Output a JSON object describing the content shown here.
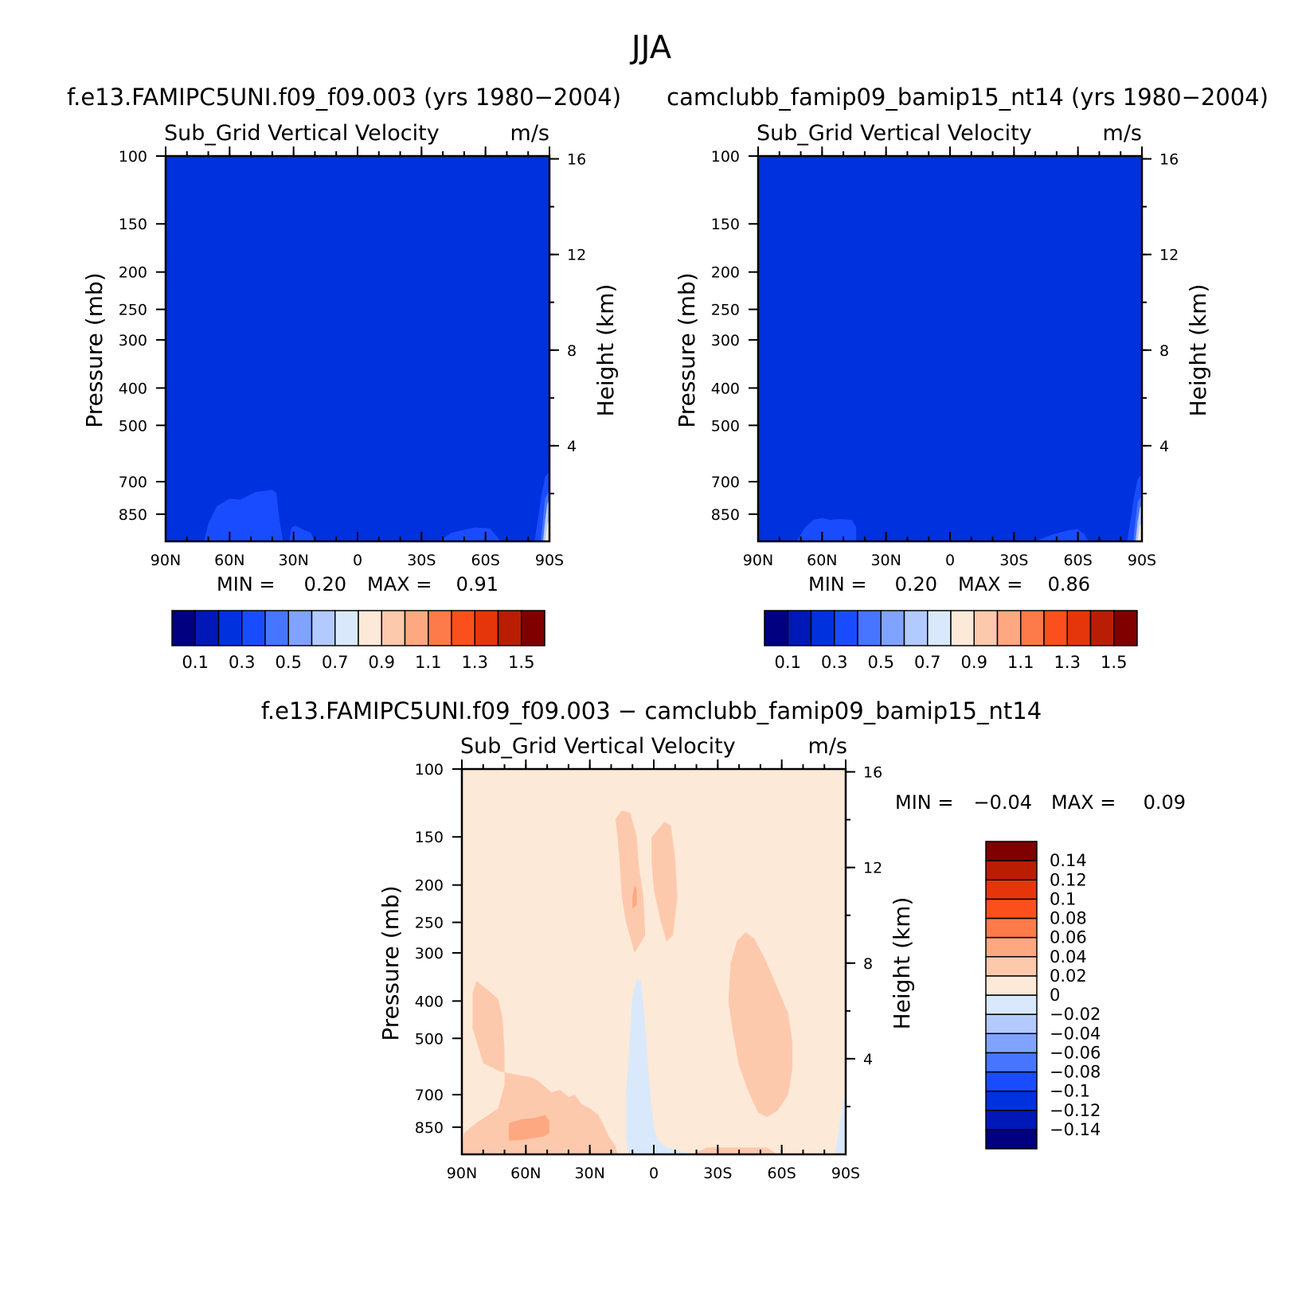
{
  "figure": {
    "title": "JJA"
  },
  "palettes": {
    "abs": [
      "#000080",
      "#0018b8",
      "#0031de",
      "#1a4cff",
      "#4775ff",
      "#80a3ff",
      "#b3caff",
      "#d9e9fb",
      "#fde9d8",
      "#fdc9ad",
      "#fda880",
      "#fd7a4a",
      "#fb501d",
      "#e4360a",
      "#b91e05",
      "#800000"
    ],
    "diff": [
      "#000080",
      "#0018b8",
      "#0031de",
      "#1a4cff",
      "#4775ff",
      "#80a3ff",
      "#b3caff",
      "#d9e9fb",
      "#fde9d8",
      "#fdc9ad",
      "#fda880",
      "#fd7a4a",
      "#fb501d",
      "#e4360a",
      "#b91e05",
      "#800000"
    ]
  },
  "chart_data": [
    {
      "type": "heatmap",
      "case_title": "f.e13.FAMIPC5UNI.f09_f09.003 (yrs 1980-2004)",
      "var_title": "Sub_Grid Vertical Velocity",
      "units": "m/s",
      "ylabel": "Pressure (mb)",
      "ylabel_right": "Height (km)",
      "x_ticks": [
        "90N",
        "60N",
        "30N",
        "0",
        "30S",
        "60S",
        "90S"
      ],
      "y_ticks": [
        "100",
        "150",
        "200",
        "250",
        "300",
        "400",
        "500",
        "700",
        "850"
      ],
      "y_ticks_right": [
        "16",
        "12",
        "8",
        "4"
      ],
      "xlim": [
        90,
        -90
      ],
      "ylim": [
        1000,
        100
      ],
      "y_scale": "log",
      "min_label": "MIN =",
      "min_value": "0.20",
      "max_label": "MAX =",
      "max_value": "0.91",
      "background_value": 0.25,
      "colorbar_labels": [
        "0.1",
        "0.3",
        "0.5",
        "0.7",
        "0.9",
        "1.1",
        "1.3",
        "1.5"
      ],
      "levels": [
        0.1,
        0.2,
        0.3,
        0.4,
        0.5,
        0.6,
        0.7,
        0.8,
        0.9,
        1.0,
        1.1,
        1.2,
        1.3,
        1.4,
        1.5
      ],
      "regions": [
        {
          "value": 0.35,
          "points": [
            [
              72,
              1000
            ],
            [
              70,
              900
            ],
            [
              66,
              810
            ],
            [
              60,
              775
            ],
            [
              55,
              780
            ],
            [
              48,
              745
            ],
            [
              40,
              735
            ],
            [
              38,
              750
            ],
            [
              37,
              850
            ],
            [
              35,
              1000
            ]
          ]
        },
        {
          "value": 0.35,
          "points": [
            [
              32,
              1000
            ],
            [
              31,
              920
            ],
            [
              29,
              910
            ],
            [
              26,
              930
            ],
            [
              22,
              950
            ],
            [
              20,
              1000
            ]
          ]
        },
        {
          "value": 0.35,
          "points": [
            [
              -38,
              1000
            ],
            [
              -44,
              950
            ],
            [
              -55,
              920
            ],
            [
              -62,
              925
            ],
            [
              -66,
              980
            ],
            [
              -67,
              1000
            ]
          ]
        },
        {
          "value": 0.35,
          "points": [
            [
              -83,
              1000
            ],
            [
              -85,
              850
            ],
            [
              -86,
              770
            ],
            [
              -88,
              680
            ],
            [
              -90,
              660
            ],
            [
              -90,
              1000
            ]
          ]
        },
        {
          "value": 0.45,
          "points": [
            [
              -86,
              1000
            ],
            [
              -87,
              870
            ],
            [
              -88,
              770
            ],
            [
              -90,
              740
            ],
            [
              -90,
              1000
            ]
          ]
        },
        {
          "value": 0.6,
          "points": [
            [
              -87,
              1000
            ],
            [
              -88,
              880
            ],
            [
              -89,
              800
            ],
            [
              -90,
              780
            ],
            [
              -90,
              1000
            ]
          ]
        },
        {
          "value": 0.8,
          "points": [
            [
              -88,
              1000
            ],
            [
              -89,
              900
            ],
            [
              -90,
              880
            ],
            [
              -90,
              1000
            ]
          ]
        }
      ]
    },
    {
      "type": "heatmap",
      "case_title": "camclubb_famip09_bamip15_nt14 (yrs 1980-2004)",
      "var_title": "Sub_Grid Vertical Velocity",
      "units": "m/s",
      "ylabel": "Pressure (mb)",
      "ylabel_right": "Height (km)",
      "x_ticks": [
        "90N",
        "60N",
        "30N",
        "0",
        "30S",
        "60S",
        "90S"
      ],
      "y_ticks": [
        "100",
        "150",
        "200",
        "250",
        "300",
        "400",
        "500",
        "700",
        "850"
      ],
      "y_ticks_right": [
        "16",
        "12",
        "8",
        "4"
      ],
      "xlim": [
        90,
        -90
      ],
      "ylim": [
        1000,
        100
      ],
      "y_scale": "log",
      "min_label": "MIN =",
      "min_value": "0.20",
      "max_label": "MAX =",
      "max_value": "0.86",
      "background_value": 0.25,
      "colorbar_labels": [
        "0.1",
        "0.3",
        "0.5",
        "0.7",
        "0.9",
        "1.1",
        "1.3",
        "1.5"
      ],
      "levels": [
        0.1,
        0.2,
        0.3,
        0.4,
        0.5,
        0.6,
        0.7,
        0.8,
        0.9,
        1.0,
        1.1,
        1.2,
        1.3,
        1.4,
        1.5
      ],
      "regions": [
        {
          "value": 0.35,
          "points": [
            [
              72,
              1000
            ],
            [
              68,
              920
            ],
            [
              64,
              880
            ],
            [
              60,
              870
            ],
            [
              56,
              880
            ],
            [
              52,
              875
            ],
            [
              46,
              880
            ],
            [
              44,
              920
            ],
            [
              44,
              1000
            ]
          ]
        },
        {
          "value": 0.35,
          "points": [
            [
              -40,
              1000
            ],
            [
              -48,
              960
            ],
            [
              -56,
              935
            ],
            [
              -60,
              930
            ],
            [
              -63,
              960
            ],
            [
              -65,
              1000
            ]
          ]
        },
        {
          "value": 0.35,
          "points": [
            [
              -83,
              1000
            ],
            [
              -85,
              860
            ],
            [
              -86,
              780
            ],
            [
              -88,
              690
            ],
            [
              -90,
              670
            ],
            [
              -90,
              1000
            ]
          ]
        },
        {
          "value": 0.45,
          "points": [
            [
              -86,
              1000
            ],
            [
              -87,
              880
            ],
            [
              -88,
              790
            ],
            [
              -90,
              760
            ],
            [
              -90,
              1000
            ]
          ]
        },
        {
          "value": 0.6,
          "points": [
            [
              -87,
              1000
            ],
            [
              -88,
              890
            ],
            [
              -89,
              820
            ],
            [
              -90,
              800
            ],
            [
              -90,
              1000
            ]
          ]
        },
        {
          "value": 0.8,
          "points": [
            [
              -88,
              1000
            ],
            [
              -89,
              910
            ],
            [
              -90,
              890
            ],
            [
              -90,
              1000
            ]
          ]
        }
      ]
    },
    {
      "type": "heatmap",
      "case_title": "f.e13.FAMIPC5UNI.f09_f09.003 - camclubb_famip09_bamip15_nt14",
      "var_title": "Sub_Grid Vertical Velocity",
      "units": "m/s",
      "ylabel": "Pressure (mb)",
      "ylabel_right": "Height (km)",
      "x_ticks": [
        "90N",
        "60N",
        "30N",
        "0",
        "30S",
        "60S",
        "90S"
      ],
      "y_ticks": [
        "100",
        "150",
        "200",
        "250",
        "300",
        "400",
        "500",
        "700",
        "850"
      ],
      "y_ticks_right": [
        "16",
        "12",
        "8",
        "4"
      ],
      "xlim": [
        90,
        -90
      ],
      "ylim": [
        1000,
        100
      ],
      "y_scale": "log",
      "min_label": "MIN =",
      "min_value": "-0.04",
      "max_label": "MAX =",
      "max_value": "0.09",
      "background_value": 0.01,
      "colorbar_labels": [
        "0.14",
        "0.12",
        "0.1",
        "0.08",
        "0.06",
        "0.04",
        "0.02",
        "0",
        "-0.02",
        "-0.04",
        "-0.06",
        "-0.08",
        "-0.1",
        "-0.12",
        "-0.14"
      ],
      "levels": [
        -0.14,
        -0.12,
        -0.1,
        -0.08,
        -0.06,
        -0.04,
        -0.02,
        0,
        0.02,
        0.04,
        0.06,
        0.08,
        0.1,
        0.12,
        0.14
      ],
      "regions": [
        {
          "value": 0.03,
          "points": [
            [
              18,
              135
            ],
            [
              15,
              128
            ],
            [
              11,
              130
            ],
            [
              8,
              150
            ],
            [
              7,
              180
            ],
            [
              5,
              210
            ],
            [
              4,
              270
            ],
            [
              9,
              300
            ],
            [
              13,
              250
            ],
            [
              15,
              215
            ],
            [
              16,
              175
            ],
            [
              17,
              150
            ]
          ]
        },
        {
          "value": 0.03,
          "points": [
            [
              1,
              150
            ],
            [
              -5,
              137
            ],
            [
              -8,
              140
            ],
            [
              -10,
              170
            ],
            [
              -11,
              215
            ],
            [
              -9,
              270
            ],
            [
              -6,
              280
            ],
            [
              -3,
              245
            ],
            [
              0,
              205
            ],
            [
              1,
              175
            ]
          ]
        },
        {
          "value": 0.03,
          "points": [
            [
              -36,
              320
            ],
            [
              -39,
              280
            ],
            [
              -43,
              265
            ],
            [
              -47,
              275
            ],
            [
              -52,
              310
            ],
            [
              -58,
              370
            ],
            [
              -63,
              430
            ],
            [
              -65,
              510
            ],
            [
              -65,
              600
            ],
            [
              -63,
              700
            ],
            [
              -58,
              770
            ],
            [
              -53,
              800
            ],
            [
              -49,
              780
            ],
            [
              -45,
              700
            ],
            [
              -40,
              590
            ],
            [
              -37,
              480
            ],
            [
              -35,
              400
            ]
          ]
        },
        {
          "value": 0.03,
          "points": [
            [
              -18,
              1000
            ],
            [
              -25,
              960
            ],
            [
              -40,
              960
            ],
            [
              -53,
              960
            ],
            [
              -58,
              1000
            ]
          ]
        },
        {
          "value": 0.03,
          "points": [
            [
              90,
              1000
            ],
            [
              89,
              880
            ],
            [
              82,
              820
            ],
            [
              73,
              760
            ],
            [
              70,
              660
            ],
            [
              70,
              540
            ],
            [
              71,
              440
            ],
            [
              73,
              395
            ],
            [
              79,
              370
            ],
            [
              83,
              355
            ],
            [
              85,
              380
            ],
            [
              85,
              470
            ],
            [
              80,
              580
            ],
            [
              72,
              610
            ],
            [
              65,
              620
            ],
            [
              58,
              630
            ],
            [
              55,
              640
            ],
            [
              52,
              660
            ],
            [
              48,
              690
            ],
            [
              44,
              680
            ],
            [
              40,
              710
            ],
            [
              37,
              700
            ],
            [
              34,
              740
            ],
            [
              30,
              760
            ],
            [
              26,
              790
            ],
            [
              24,
              830
            ],
            [
              21,
              900
            ],
            [
              18,
              950
            ],
            [
              17,
              1000
            ]
          ]
        },
        {
          "value": 0.05,
          "points": [
            [
              68,
              920
            ],
            [
              68,
              830
            ],
            [
              62,
              810
            ],
            [
              56,
              805
            ],
            [
              51,
              790
            ],
            [
              49,
              820
            ],
            [
              49,
              880
            ],
            [
              52,
              900
            ],
            [
              58,
              910
            ],
            [
              64,
              920
            ]
          ]
        },
        {
          "value": 0.05,
          "points": [
            [
              10,
              215
            ],
            [
              9,
              200
            ],
            [
              8,
              205
            ],
            [
              8,
              225
            ],
            [
              10,
              230
            ]
          ]
        },
        {
          "value": -0.01,
          "points": [
            [
              12,
              1000
            ],
            [
              13,
              900
            ],
            [
              13,
              700
            ],
            [
              12,
              580
            ],
            [
              11,
              470
            ],
            [
              10,
              390
            ],
            [
              8,
              350
            ],
            [
              6,
              355
            ],
            [
              5,
              400
            ],
            [
              4,
              470
            ],
            [
              3,
              550
            ],
            [
              2,
              660
            ],
            [
              1,
              750
            ],
            [
              0,
              850
            ],
            [
              -2,
              920
            ],
            [
              -6,
              960
            ],
            [
              -12,
              980
            ],
            [
              -18,
              1000
            ]
          ]
        },
        {
          "value": -0.01,
          "points": [
            [
              -85,
              1000
            ],
            [
              -87,
              850
            ],
            [
              -89,
              720
            ],
            [
              -90,
              700
            ],
            [
              -90,
              1000
            ]
          ]
        }
      ]
    }
  ]
}
